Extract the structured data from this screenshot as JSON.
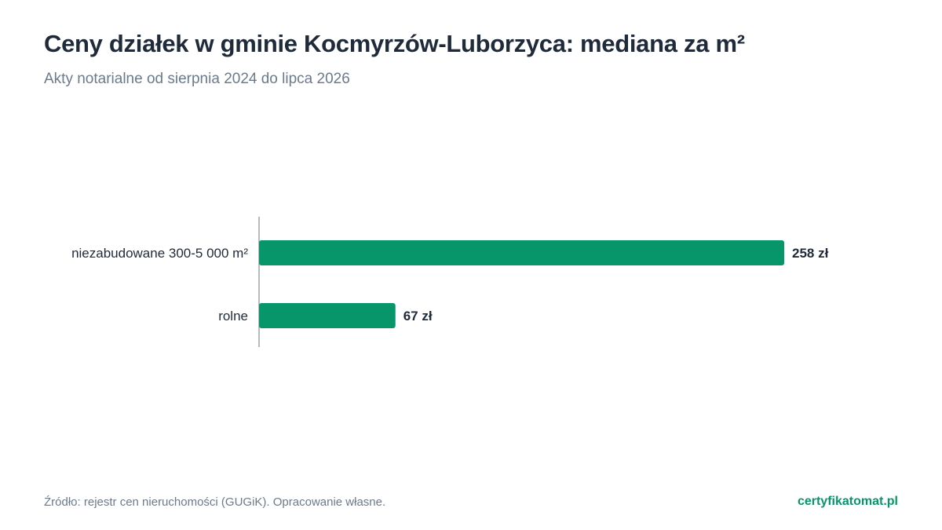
{
  "header": {
    "title": "Ceny działek w gminie Kocmyrzów-Luborzyca: mediana za m²",
    "subtitle": "Akty notarialne od sierpnia 2024 do lipca 2026"
  },
  "chart_data": {
    "type": "bar",
    "orientation": "horizontal",
    "categories": [
      "niezabudowane 300-5 000 m²",
      "rolne"
    ],
    "values": [
      258,
      67
    ],
    "value_labels": [
      "258 zł",
      "67 zł"
    ],
    "xlim": [
      0,
      258
    ],
    "grid": false,
    "bar_color": "#079669"
  },
  "footer": {
    "source": "Źródło: rejestr cen nieruchomości (GUGiK). Opracowanie własne.",
    "brand": "certyfikatomat.pl",
    "brand_color": "#079669"
  }
}
